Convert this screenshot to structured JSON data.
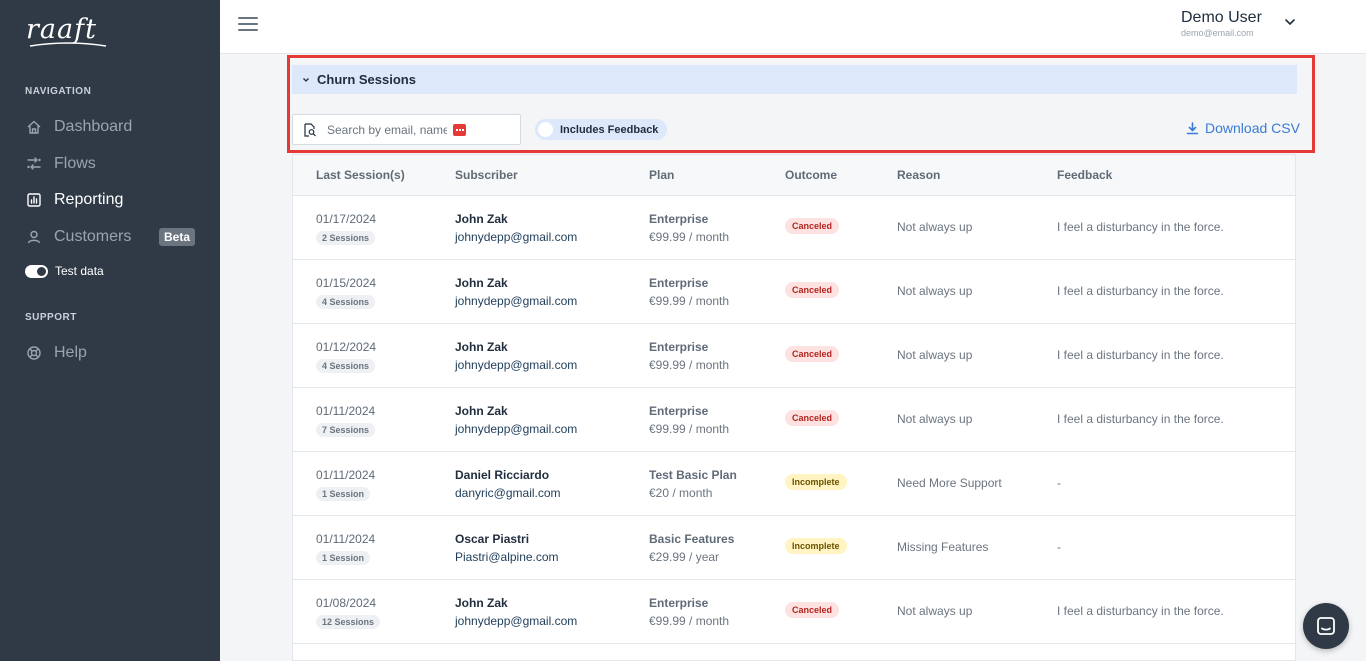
{
  "app": {
    "logo_text": "raaft"
  },
  "sidebar": {
    "navigation_heading": "NAVIGATION",
    "items": [
      {
        "label": "Dashboard",
        "icon": "home-icon"
      },
      {
        "label": "Flows",
        "icon": "flows-icon"
      },
      {
        "label": "Reporting",
        "icon": "reporting-icon",
        "active": true
      },
      {
        "label": "Customers",
        "icon": "user-icon",
        "badge": "Beta"
      }
    ],
    "test_data_label": "Test data",
    "test_data_on": true,
    "support_heading": "SUPPORT",
    "help_label": "Help"
  },
  "header": {
    "user_name": "Demo User",
    "user_email": "demo@email.com"
  },
  "section": {
    "title": "Churn Sessions",
    "search_placeholder": "Search by email, name",
    "feedback_toggle_label": "Includes Feedback",
    "download_label": "Download CSV"
  },
  "table": {
    "columns": [
      "Last Session(s)",
      "Subscriber",
      "Plan",
      "Outcome",
      "Reason",
      "Feedback"
    ],
    "rows": [
      {
        "date": "01/17/2024",
        "sessions": "2 Sessions",
        "name": "John Zak",
        "email": "johnydepp@gmail.com",
        "plan": "Enterprise",
        "price": "€99.99 / month",
        "outcome": "Canceled",
        "reason": "Not always up",
        "feedback": "I feel a disturbancy in the force."
      },
      {
        "date": "01/15/2024",
        "sessions": "4 Sessions",
        "name": "John Zak",
        "email": "johnydepp@gmail.com",
        "plan": "Enterprise",
        "price": "€99.99 / month",
        "outcome": "Canceled",
        "reason": "Not always up",
        "feedback": "I feel a disturbancy in the force."
      },
      {
        "date": "01/12/2024",
        "sessions": "4 Sessions",
        "name": "John Zak",
        "email": "johnydepp@gmail.com",
        "plan": "Enterprise",
        "price": "€99.99 / month",
        "outcome": "Canceled",
        "reason": "Not always up",
        "feedback": "I feel a disturbancy in the force."
      },
      {
        "date": "01/11/2024",
        "sessions": "7 Sessions",
        "name": "John Zak",
        "email": "johnydepp@gmail.com",
        "plan": "Enterprise",
        "price": "€99.99 / month",
        "outcome": "Canceled",
        "reason": "Not always up",
        "feedback": "I feel a disturbancy in the force."
      },
      {
        "date": "01/11/2024",
        "sessions": "1 Session",
        "name": "Daniel Ricciardo",
        "email": "danyric@gmail.com",
        "plan": "Test Basic Plan",
        "price": "€20 / month",
        "outcome": "Incomplete",
        "reason": "Need More Support",
        "feedback": "-"
      },
      {
        "date": "01/11/2024",
        "sessions": "1 Session",
        "name": "Oscar Piastri",
        "email": "Piastri@alpine.com",
        "plan": "Basic Features",
        "price": "€29.99 / year",
        "outcome": "Incomplete",
        "reason": "Missing Features",
        "feedback": "-"
      },
      {
        "date": "01/08/2024",
        "sessions": "12 Sessions",
        "name": "John Zak",
        "email": "johnydepp@gmail.com",
        "plan": "Enterprise",
        "price": "€99.99 / month",
        "outcome": "Canceled",
        "reason": "Not always up",
        "feedback": "I feel a disturbancy in the force."
      }
    ]
  },
  "colors": {
    "sidebar_bg": "#2f3a46",
    "accent": "#3a7bd5",
    "highlight_border": "#e53935",
    "canceled_badge": "#fde2e1",
    "incomplete_badge": "#fff4c2"
  }
}
